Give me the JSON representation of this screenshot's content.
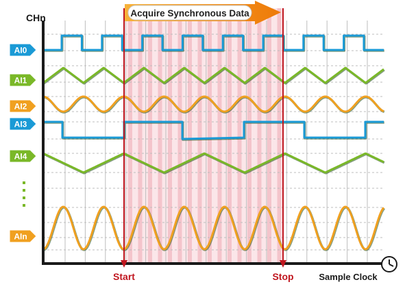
{
  "axis": {
    "y_label": "CHn",
    "x_label": "Sample Clock"
  },
  "banner": {
    "text": "Acquire Synchronous Data"
  },
  "markers": {
    "start": "Start",
    "stop": "Stop"
  },
  "channels": [
    {
      "label": "AI0",
      "color": "#1a9ad6",
      "wave": "square"
    },
    {
      "label": "AI1",
      "color": "#7ab828",
      "wave": "triangle"
    },
    {
      "label": "AI2",
      "color": "#f0a020",
      "wave": "sine"
    },
    {
      "label": "AI3",
      "color": "#1a9ad6",
      "wave": "square"
    },
    {
      "label": "AI4",
      "color": "#7ab828",
      "wave": "triangle"
    },
    {
      "label": "AIn",
      "color": "#f0a020",
      "wave": "sine"
    }
  ],
  "colors": {
    "axis": "#1a1a1a",
    "grid": "#bdbdbd",
    "highlight": "#f2b8c0",
    "marker": "#c0161f",
    "banner_arrow": "#f28a10"
  },
  "icons": {
    "clock": "clock-icon"
  }
}
